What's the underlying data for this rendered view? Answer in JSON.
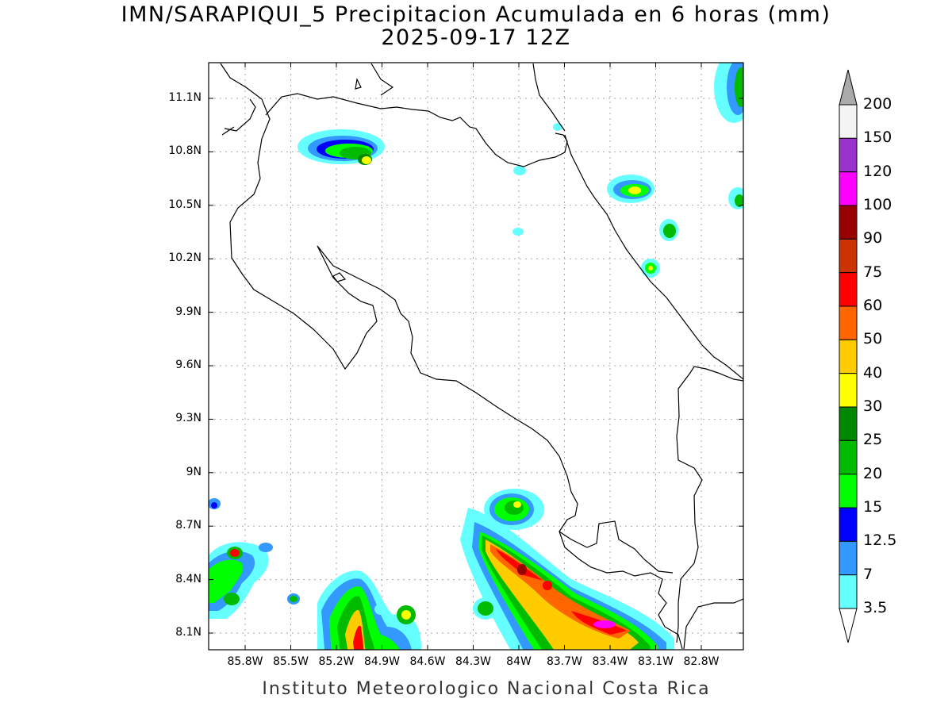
{
  "title": "IMN/SARAPIQUI_5 Precipitacion Acumulada en 6 horas (mm)",
  "subtitle": "2025-09-17 12Z",
  "footer": "Instituto Meteorologico Nacional Costa Rica",
  "lat_ticks": [
    "11.1N",
    "10.8N",
    "10.5N",
    "10.2N",
    "9.9N",
    "9.6N",
    "9.3N",
    "9N",
    "8.7N",
    "8.4N",
    "8.1N"
  ],
  "lon_ticks": [
    "85.8W",
    "85.5W",
    "85.2W",
    "84.9W",
    "84.6W",
    "84.3W",
    "84W",
    "83.7W",
    "83.4W",
    "83.1W",
    "82.8W"
  ],
  "colorbar": {
    "labels": [
      "200",
      "150",
      "120",
      "100",
      "90",
      "75",
      "60",
      "50",
      "40",
      "30",
      "25",
      "20",
      "15",
      "12.5",
      "7",
      "3.5"
    ],
    "colors": [
      "#f4f4f4",
      "#9933cc",
      "#ff00ff",
      "#990000",
      "#cc3300",
      "#ff0000",
      "#ff6600",
      "#ffcc00",
      "#ffff00",
      "#008800",
      "#00bb00",
      "#00ff00",
      "#0000ff",
      "#3399ff",
      "#66ffff"
    ],
    "over_color": "#aaaaaa"
  }
}
